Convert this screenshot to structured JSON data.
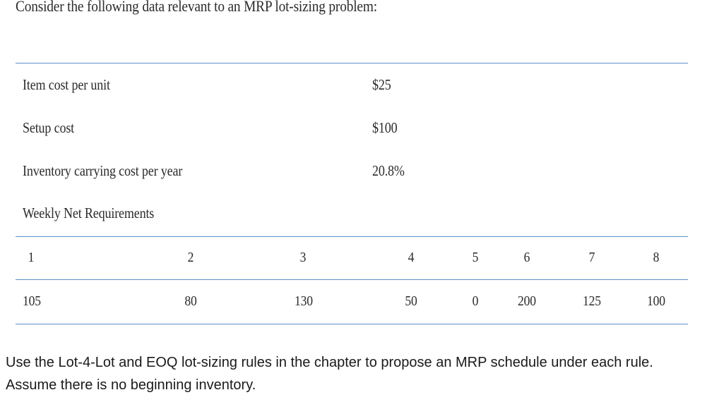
{
  "heading": "Consider the following data relevant to an MRP lot-sizing problem:",
  "parameters": [
    {
      "label": "Item cost per unit",
      "value": "$25"
    },
    {
      "label": "Setup cost",
      "value": "$100"
    },
    {
      "label": "Inventory carrying cost per year",
      "value": "20.8%"
    }
  ],
  "weekly_label": "Weekly Net Requirements",
  "table": {
    "weeks": [
      "1",
      "2",
      "3",
      "4",
      "5",
      "6",
      "7",
      "8"
    ],
    "requirements": [
      "105",
      "80",
      "130",
      "50",
      "0",
      "200",
      "125",
      "100"
    ]
  },
  "instruction": "Use the Lot-4-Lot and EOQ lot-sizing rules in the chapter to propose an MRP schedule under each rule. Assume there is no beginning inventory."
}
